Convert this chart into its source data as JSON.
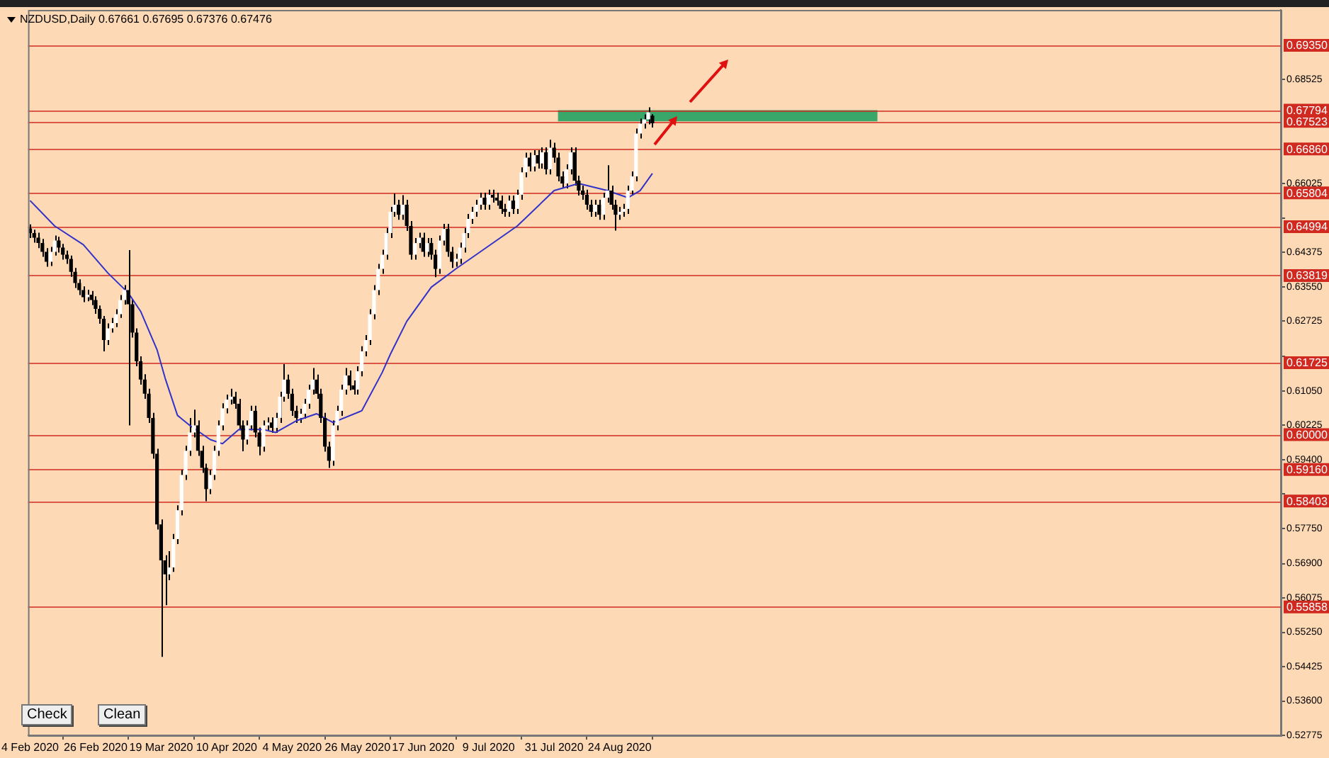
{
  "chart_data": {
    "type": "candlestick",
    "title": "NZDUSD,Daily 0.67661 0.67695 0.67376 0.67476",
    "annotations": [
      "Check",
      "Clean"
    ],
    "categories": [
      "4 Feb 2020",
      null,
      null,
      null,
      null,
      null,
      null,
      null,
      null,
      null,
      null,
      null,
      null,
      null,
      null,
      null,
      "26 Feb 2020",
      null,
      null,
      null,
      null,
      null,
      null,
      null,
      null,
      null,
      null,
      null,
      null,
      null,
      null,
      null,
      "19 Mar 2020",
      null,
      null,
      null,
      null,
      null,
      null,
      null,
      null,
      null,
      null,
      null,
      null,
      null,
      null,
      null,
      "10 Apr 2020",
      null,
      null,
      null,
      null,
      null,
      null,
      null,
      null,
      null,
      null,
      null,
      null,
      null,
      null,
      null,
      "4 May 2020",
      null,
      null,
      null,
      null,
      null,
      null,
      null,
      null,
      null,
      null,
      null,
      null,
      null,
      null,
      null,
      "26 May 2020",
      null,
      null,
      null,
      null,
      null,
      null,
      null,
      null,
      null,
      null,
      null,
      null,
      null,
      null,
      null,
      "17 Jun 2020",
      null,
      null,
      null,
      null,
      null,
      null,
      null,
      null,
      null,
      null,
      null,
      null,
      null,
      null,
      null,
      "9 Jul 2020",
      null,
      null,
      null,
      null,
      null,
      null,
      null,
      null,
      null,
      null,
      null,
      null,
      null,
      null,
      null,
      "31 Jul 2020",
      null,
      null,
      null,
      null,
      null,
      null,
      null,
      null,
      null,
      null,
      null,
      null,
      null,
      null,
      null,
      "24 Aug 2020",
      null,
      null,
      null,
      null,
      null,
      null,
      null,
      null,
      null,
      null,
      null,
      null,
      null,
      null,
      null,
      null,
      null,
      null,
      null,
      null,
      null,
      null,
      null,
      null,
      null,
      null,
      null,
      null,
      null,
      null,
      null,
      null,
      null,
      null,
      null,
      null,
      null,
      null,
      null,
      null,
      null,
      null,
      null,
      null,
      null,
      null,
      null,
      null,
      null,
      null,
      null,
      null,
      null,
      null,
      null,
      null,
      null,
      null,
      null,
      null,
      null,
      null,
      null,
      null,
      null,
      null,
      null,
      null,
      null,
      null,
      null,
      null,
      null,
      null,
      null,
      null,
      null,
      null,
      null,
      null,
      null,
      null,
      null,
      null,
      null,
      null,
      null,
      null,
      null,
      null,
      null,
      null,
      null,
      null,
      null,
      null,
      null,
      null,
      null,
      null,
      null,
      null,
      null,
      null,
      null,
      null,
      null,
      null,
      null,
      null,
      null,
      null,
      null,
      null,
      null,
      null,
      null,
      null,
      null,
      null,
      null,
      null,
      null,
      null,
      null,
      null,
      null,
      null,
      null,
      null,
      null,
      null,
      null,
      null,
      null,
      null,
      null,
      null,
      null,
      null,
      null,
      null,
      null,
      null,
      null,
      null,
      null,
      null,
      null,
      null,
      null,
      null,
      null,
      null,
      null,
      null,
      null,
      null,
      null,
      null,
      null
    ],
    "ylim": [
      0.52775,
      0.702
    ],
    "yticks": [
      {
        "value": 0.52775,
        "label": "0.52775"
      },
      {
        "value": 0.536,
        "label": "0.53600"
      },
      {
        "value": 0.54425,
        "label": "0.54425"
      },
      {
        "value": 0.5525,
        "label": "0.55250"
      },
      {
        "value": 0.56075,
        "label": "0.56075"
      },
      {
        "value": 0.569,
        "label": "0.56900"
      },
      {
        "value": 0.5775,
        "label": "0.57750"
      },
      {
        "value": 0.58575,
        "label": null
      },
      {
        "value": 0.594,
        "label": "0.59400"
      },
      {
        "value": 0.60225,
        "label": "0.60225"
      },
      {
        "value": 0.6105,
        "label": "0.61050"
      },
      {
        "value": 0.61875,
        "label": null
      },
      {
        "value": 0.62725,
        "label": "0.62725"
      },
      {
        "value": 0.6355,
        "label": "0.63550"
      },
      {
        "value": 0.64375,
        "label": "0.64375"
      },
      {
        "value": 0.652,
        "label": null
      },
      {
        "value": 0.66025,
        "label": "0.66025"
      },
      {
        "value": 0.68525,
        "label": "0.68525"
      }
    ],
    "ref_lines": [
      {
        "axis": "y",
        "value": 0.6935,
        "label": "0.69350",
        "color": "#d02a20"
      },
      {
        "axis": "y",
        "value": 0.67794,
        "label": "0.67794",
        "color": "#d02a20"
      },
      {
        "axis": "y",
        "value": 0.67523,
        "label": "0.67523",
        "color": "#d02a20"
      },
      {
        "axis": "y",
        "value": 0.6686,
        "label": "0.66860",
        "color": "#d02a20"
      },
      {
        "axis": "y",
        "value": 0.65804,
        "label": "0.65804",
        "color": "#d02a20"
      },
      {
        "axis": "y",
        "value": 0.64994,
        "label": "0.64994",
        "color": "#d02a20"
      },
      {
        "axis": "y",
        "value": 0.63819,
        "label": "0.63819",
        "color": "#d02a20"
      },
      {
        "axis": "y",
        "value": 0.61725,
        "label": "0.61725",
        "color": "#d02a20"
      },
      {
        "axis": "y",
        "value": 0.6,
        "label": "0.60000",
        "color": "#d02a20"
      },
      {
        "axis": "y",
        "value": 0.5916,
        "label": "0.59160",
        "color": "#d02a20"
      },
      {
        "axis": "y",
        "value": 0.58403,
        "label": "0.58403",
        "color": "#d02a20"
      },
      {
        "axis": "y",
        "value": 0.55858,
        "label": "0.55858",
        "color": "#d02a20"
      }
    ],
    "bands": [
      {
        "axis": "y",
        "from": 0.67523,
        "to": 0.67794,
        "color": "#3aa76a"
      }
    ],
    "color": "#000000",
    "colors": [
      "#000000",
      "#000000",
      "#000000",
      "#000000",
      "#000000",
      "#ffffff",
      "#ffffff",
      "#000000",
      "#000000",
      "#000000",
      "#000000",
      "#000000",
      "#000000",
      "#000000",
      "#ffffff",
      "#000000",
      "#000000",
      "#000000",
      "#000000",
      "#ffffff",
      "#ffffff",
      "#ffffff",
      "#ffffff",
      "#ffffff",
      "#000000",
      "#000000",
      "#000000",
      "#000000",
      "#000000",
      "#000000",
      "#000000",
      "#000000",
      "#000000",
      "#000000",
      "#ffffff",
      "#ffffff",
      "#ffffff",
      "#ffffff",
      "#ffffff",
      "#ffffff",
      "#ffffff",
      "#000000",
      "#000000",
      "#000000",
      "#ffffff",
      "#ffffff",
      "#ffffff",
      "#ffffff",
      "#ffffff",
      "#ffffff",
      "#000000",
      "#000000",
      "#000000",
      "#ffffff",
      "#ffffff",
      "#000000",
      "#000000",
      "#ffffff",
      "#ffffff",
      "#000000",
      "#ffffff",
      "#ffffff",
      "#ffffff",
      "#000000",
      "#000000",
      "#000000",
      "#ffffff",
      "#ffffff",
      "#ffffff",
      "#ffffff",
      "#000000",
      "#000000",
      "#000000",
      "#000000",
      "#ffffff",
      "#ffffff",
      "#ffffff",
      "#ffffff",
      "#000000",
      "#000000",
      "#ffffff",
      "#ffffff",
      "#ffffff",
      "#ffffff",
      "#ffffff",
      "#ffffff",
      "#ffffff",
      "#ffffff",
      "#ffffff",
      "#ffffff",
      "#000000",
      "#ffffff",
      "#000000",
      "#000000",
      "#ffffff",
      "#ffffff",
      "#000000",
      "#ffffff",
      "#000000",
      "#000000",
      "#ffffff",
      "#ffffff",
      "#000000",
      "#000000",
      "#ffffff",
      "#ffffff",
      "#ffffff",
      "#ffffff",
      "#ffffff",
      "#ffffff",
      "#ffffff",
      "#000000",
      "#ffffff",
      "#000000",
      "#000000",
      "#000000",
      "#000000",
      "#ffffff",
      "#000000",
      "#ffffff",
      "#ffffff",
      "#ffffff",
      "#000000",
      "#ffffff",
      "#000000",
      "#ffffff",
      "#000000",
      "#ffffff",
      "#000000",
      "#000000",
      "#000000",
      "#ffffff",
      "#ffffff",
      "#000000",
      "#000000",
      "#000000",
      "#000000",
      "#000000",
      "#ffffff",
      "#000000",
      "#ffffff",
      "#ffffff",
      "#000000",
      "#000000",
      "#ffffff",
      "#ffffff",
      "#ffffff",
      "#ffffff",
      "#ffffff",
      "#ffffff",
      "#ffffff",
      "#ffffff",
      "#000000",
      null,
      null,
      null,
      null,
      null,
      null,
      null,
      null,
      null,
      null,
      null,
      null,
      null,
      null,
      null,
      null,
      null,
      null,
      null,
      null,
      null,
      null,
      null,
      null,
      null,
      null,
      null,
      null,
      null,
      null,
      null,
      null,
      null,
      null,
      null,
      null,
      null,
      null,
      null,
      null,
      null,
      null,
      null,
      null,
      null,
      null,
      null,
      null,
      null,
      null,
      null,
      null,
      null,
      null,
      null,
      null,
      null,
      null,
      null,
      null,
      null,
      null,
      null,
      null,
      null,
      null,
      null,
      null,
      null,
      null,
      null,
      null,
      null,
      null,
      null,
      null,
      null,
      null,
      null,
      null,
      null,
      null,
      null,
      null,
      null,
      null,
      null,
      null,
      null,
      null,
      null,
      null,
      null,
      null,
      null,
      null,
      null,
      null,
      null,
      null,
      null,
      null,
      null,
      null,
      null,
      null,
      null,
      null,
      null,
      null,
      null,
      null,
      null,
      null,
      null,
      null,
      null,
      null,
      null,
      null,
      null,
      null,
      null,
      null,
      null,
      null,
      null,
      null,
      null,
      null,
      null,
      null,
      null,
      null,
      null,
      null,
      null,
      null,
      null,
      null,
      null,
      null,
      null,
      null,
      null,
      null,
      null,
      null,
      null,
      null,
      null,
      null,
      null
    ],
    "ohlc": [
      [
        0.6495,
        0.6505,
        0.6472,
        0.6484
      ],
      [
        0.6484,
        0.6492,
        0.6461,
        0.6473
      ],
      [
        0.6473,
        0.6485,
        0.6448,
        0.646
      ],
      [
        0.646,
        0.647,
        0.6427,
        0.6439
      ],
      [
        0.6439,
        0.6448,
        0.6403,
        0.6415
      ],
      [
        0.6415,
        0.6451,
        0.6405,
        0.6439
      ],
      [
        0.6439,
        0.6478,
        0.643,
        0.6466
      ],
      [
        0.6466,
        0.6475,
        0.6437,
        0.6449
      ],
      [
        0.6449,
        0.6458,
        0.642,
        0.6432
      ],
      [
        0.6432,
        0.6442,
        0.641,
        0.6422
      ],
      [
        0.6422,
        0.643,
        0.6379,
        0.6391
      ],
      [
        0.6391,
        0.64,
        0.6352,
        0.6364
      ],
      [
        0.6364,
        0.6373,
        0.6335,
        0.6347
      ],
      [
        0.6347,
        0.6356,
        0.6318,
        0.633
      ],
      [
        0.633,
        0.6348,
        0.632,
        0.6336
      ],
      [
        0.6336,
        0.6345,
        0.6311,
        0.6323
      ],
      [
        0.6323,
        0.6332,
        0.629,
        0.6302
      ],
      [
        0.6302,
        0.631,
        0.6266,
        0.6278
      ],
      [
        0.6278,
        0.6285,
        0.62,
        0.6227
      ],
      [
        0.6227,
        0.6267,
        0.6215,
        0.6255
      ],
      [
        0.6255,
        0.628,
        0.6245,
        0.6268
      ],
      [
        0.6268,
        0.6301,
        0.6258,
        0.6289
      ],
      [
        0.6289,
        0.6335,
        0.628,
        0.6323
      ],
      [
        0.6323,
        0.6359,
        0.6312,
        0.6347
      ],
      [
        0.6347,
        0.6443,
        0.6022,
        0.6313
      ],
      [
        0.6313,
        0.6325,
        0.6233,
        0.6245
      ],
      [
        0.6245,
        0.6255,
        0.6164,
        0.6176
      ],
      [
        0.6176,
        0.6188,
        0.612,
        0.6132
      ],
      [
        0.6132,
        0.6145,
        0.6086,
        0.6098
      ],
      [
        0.6098,
        0.611,
        0.6028,
        0.604
      ],
      [
        0.604,
        0.6052,
        0.5942,
        0.5954
      ],
      [
        0.5954,
        0.5966,
        0.5772,
        0.5784
      ],
      [
        0.5784,
        0.5796,
        0.5466,
        0.5698
      ],
      [
        0.5698,
        0.571,
        0.559,
        0.5664
      ],
      [
        0.5664,
        0.572,
        0.565,
        0.5681
      ],
      [
        0.5681,
        0.5761,
        0.567,
        0.5749
      ],
      [
        0.5749,
        0.583,
        0.5737,
        0.5818
      ],
      [
        0.5818,
        0.5915,
        0.5806,
        0.5903
      ],
      [
        0.5903,
        0.5973,
        0.5891,
        0.5961
      ],
      [
        0.5961,
        0.604,
        0.5949,
        0.6005
      ],
      [
        0.6005,
        0.606,
        0.5993,
        0.6022
      ],
      [
        0.6022,
        0.6034,
        0.5949,
        0.5961
      ],
      [
        0.5961,
        0.5973,
        0.5908,
        0.592
      ],
      [
        0.592,
        0.593,
        0.584,
        0.5869
      ],
      [
        0.5869,
        0.5915,
        0.5857,
        0.5903
      ],
      [
        0.5903,
        0.5973,
        0.5891,
        0.5961
      ],
      [
        0.5961,
        0.6034,
        0.5949,
        0.6022
      ],
      [
        0.6022,
        0.6075,
        0.601,
        0.6063
      ],
      [
        0.6063,
        0.6096,
        0.6051,
        0.6084
      ],
      [
        0.6084,
        0.611,
        0.6072,
        0.6091
      ],
      [
        0.6091,
        0.6103,
        0.6062,
        0.6074
      ],
      [
        0.6074,
        0.6086,
        0.601,
        0.6022
      ],
      [
        0.6022,
        0.6034,
        0.596,
        0.5988
      ],
      [
        0.5988,
        0.6034,
        0.5976,
        0.6022
      ],
      [
        0.6022,
        0.6069,
        0.601,
        0.6057
      ],
      [
        0.6057,
        0.6069,
        0.5993,
        0.6005
      ],
      [
        0.6005,
        0.6017,
        0.595,
        0.5971
      ],
      [
        0.5971,
        0.6034,
        0.5959,
        0.6022
      ],
      [
        0.6022,
        0.6041,
        0.601,
        0.6029
      ],
      [
        0.6029,
        0.6041,
        0.6004,
        0.6016
      ],
      [
        0.6016,
        0.6052,
        0.6004,
        0.604
      ],
      [
        0.604,
        0.6103,
        0.6028,
        0.6091
      ],
      [
        0.6091,
        0.6169,
        0.6079,
        0.6132
      ],
      [
        0.6132,
        0.6144,
        0.6086,
        0.6098
      ],
      [
        0.6098,
        0.611,
        0.6045,
        0.6057
      ],
      [
        0.6057,
        0.6069,
        0.6028,
        0.604
      ],
      [
        0.604,
        0.6062,
        0.6028,
        0.605
      ],
      [
        0.605,
        0.6086,
        0.6038,
        0.6074
      ],
      [
        0.6074,
        0.612,
        0.6062,
        0.6108
      ],
      [
        0.6108,
        0.616,
        0.6096,
        0.6132
      ],
      [
        0.6132,
        0.6144,
        0.6086,
        0.6098
      ],
      [
        0.6098,
        0.611,
        0.6028,
        0.604
      ],
      [
        0.604,
        0.6052,
        0.5959,
        0.5971
      ],
      [
        0.5971,
        0.5983,
        0.592,
        0.5937
      ],
      [
        0.5937,
        0.6034,
        0.5925,
        0.6022
      ],
      [
        0.6022,
        0.6069,
        0.601,
        0.6057
      ],
      [
        0.6057,
        0.612,
        0.6045,
        0.6108
      ],
      [
        0.6108,
        0.616,
        0.6096,
        0.6142
      ],
      [
        0.6142,
        0.6154,
        0.6106,
        0.6118
      ],
      [
        0.6118,
        0.613,
        0.6096,
        0.6108
      ],
      [
        0.6108,
        0.6164,
        0.6096,
        0.6152
      ],
      [
        0.6152,
        0.6212,
        0.614,
        0.62
      ],
      [
        0.62,
        0.6239,
        0.6188,
        0.6227
      ],
      [
        0.6227,
        0.6301,
        0.6215,
        0.6289
      ],
      [
        0.6289,
        0.6359,
        0.6277,
        0.6347
      ],
      [
        0.6347,
        0.641,
        0.6335,
        0.6398
      ],
      [
        0.6398,
        0.6444,
        0.6386,
        0.6432
      ],
      [
        0.6432,
        0.6496,
        0.642,
        0.6484
      ],
      [
        0.6484,
        0.6547,
        0.6472,
        0.6535
      ],
      [
        0.6535,
        0.6579,
        0.6523,
        0.6552
      ],
      [
        0.6552,
        0.6564,
        0.6516,
        0.6528
      ],
      [
        0.6528,
        0.6575,
        0.6516,
        0.6552
      ],
      [
        0.6552,
        0.6564,
        0.6489,
        0.6501
      ],
      [
        0.6501,
        0.6513,
        0.642,
        0.6432
      ],
      [
        0.6432,
        0.6472,
        0.642,
        0.646
      ],
      [
        0.646,
        0.6485,
        0.6448,
        0.6473
      ],
      [
        0.6473,
        0.6485,
        0.6427,
        0.6439
      ],
      [
        0.6439,
        0.6472,
        0.6427,
        0.646
      ],
      [
        0.646,
        0.6472,
        0.642,
        0.6432
      ],
      [
        0.6432,
        0.6444,
        0.6378,
        0.6398
      ],
      [
        0.6398,
        0.6478,
        0.6386,
        0.6466
      ],
      [
        0.6466,
        0.6506,
        0.6454,
        0.6494
      ],
      [
        0.6494,
        0.6506,
        0.6427,
        0.6439
      ],
      [
        0.6439,
        0.6451,
        0.64,
        0.6415
      ],
      [
        0.6415,
        0.6434,
        0.6403,
        0.6422
      ],
      [
        0.6422,
        0.6461,
        0.641,
        0.6449
      ],
      [
        0.6449,
        0.6496,
        0.6437,
        0.6484
      ],
      [
        0.6484,
        0.653,
        0.6472,
        0.6518
      ],
      [
        0.6518,
        0.6547,
        0.6506,
        0.6535
      ],
      [
        0.6535,
        0.6564,
        0.6523,
        0.6552
      ],
      [
        0.6552,
        0.6581,
        0.654,
        0.6569
      ],
      [
        0.6569,
        0.6581,
        0.654,
        0.6552
      ],
      [
        0.6552,
        0.6588,
        0.654,
        0.6576
      ],
      [
        0.6576,
        0.6588,
        0.6557,
        0.6569
      ],
      [
        0.6569,
        0.6581,
        0.655,
        0.6562
      ],
      [
        0.6562,
        0.6574,
        0.653,
        0.6542
      ],
      [
        0.6542,
        0.6554,
        0.6523,
        0.6535
      ],
      [
        0.6535,
        0.6574,
        0.6523,
        0.6562
      ],
      [
        0.6562,
        0.6574,
        0.653,
        0.6542
      ],
      [
        0.6542,
        0.6588,
        0.653,
        0.6576
      ],
      [
        0.6576,
        0.6642,
        0.6564,
        0.663
      ],
      [
        0.663,
        0.6677,
        0.6618,
        0.6665
      ],
      [
        0.6665,
        0.6677,
        0.6632,
        0.6644
      ],
      [
        0.6644,
        0.6683,
        0.6632,
        0.6671
      ],
      [
        0.6671,
        0.6683,
        0.6639,
        0.6651
      ],
      [
        0.6651,
        0.669,
        0.6639,
        0.6678
      ],
      [
        0.6678,
        0.669,
        0.6625,
        0.6637
      ],
      [
        0.6637,
        0.6708,
        0.6625,
        0.6689
      ],
      [
        0.6689,
        0.6701,
        0.6653,
        0.6665
      ],
      [
        0.6665,
        0.6677,
        0.6608,
        0.662
      ],
      [
        0.662,
        0.6632,
        0.6591,
        0.6603
      ],
      [
        0.6603,
        0.6649,
        0.6591,
        0.6637
      ],
      [
        0.6637,
        0.669,
        0.6625,
        0.6678
      ],
      [
        0.6678,
        0.669,
        0.6598,
        0.661
      ],
      [
        0.661,
        0.6622,
        0.6574,
        0.6586
      ],
      [
        0.6586,
        0.6598,
        0.6564,
        0.6576
      ],
      [
        0.6576,
        0.6588,
        0.654,
        0.6552
      ],
      [
        0.6552,
        0.6564,
        0.6523,
        0.6535
      ],
      [
        0.6535,
        0.6564,
        0.6523,
        0.6552
      ],
      [
        0.6552,
        0.6564,
        0.6516,
        0.6528
      ],
      [
        0.6528,
        0.6581,
        0.6516,
        0.6569
      ],
      [
        0.6569,
        0.6647,
        0.6557,
        0.6586
      ],
      [
        0.6586,
        0.6598,
        0.654,
        0.6552
      ],
      [
        0.6552,
        0.6564,
        0.649,
        0.6528
      ],
      [
        0.6528,
        0.6547,
        0.6516,
        0.6535
      ],
      [
        0.6535,
        0.6554,
        0.6523,
        0.6542
      ],
      [
        0.6542,
        0.6598,
        0.653,
        0.6586
      ],
      [
        0.6586,
        0.6632,
        0.6574,
        0.662
      ],
      [
        0.662,
        0.6735,
        0.6608,
        0.6723
      ],
      [
        0.6723,
        0.6759,
        0.6711,
        0.6747
      ],
      [
        0.6747,
        0.6769,
        0.6735,
        0.6757
      ],
      [
        0.6757,
        0.6786,
        0.6745,
        0.6774
      ],
      [
        0.67661,
        0.67695,
        0.67376,
        0.67476
      ],
      null,
      null,
      null,
      null,
      null,
      null,
      null,
      null,
      null,
      null,
      null,
      null,
      null,
      null,
      null,
      null,
      null,
      null,
      null,
      null,
      null,
      null,
      null,
      null,
      null,
      null,
      null,
      null,
      null,
      null,
      null,
      null,
      null,
      null,
      null,
      null,
      null,
      null,
      null,
      null,
      null,
      null,
      null,
      null,
      null,
      null,
      null,
      null,
      null,
      null,
      null,
      null,
      null,
      null,
      null,
      null,
      null,
      null,
      null,
      null,
      null,
      null,
      null,
      null,
      null,
      null,
      null,
      null,
      null,
      null,
      null,
      null,
      null,
      null,
      null,
      null,
      null,
      null,
      null,
      null,
      null,
      null,
      null,
      null,
      null,
      null,
      null,
      null,
      null,
      null,
      null,
      null,
      null,
      null,
      null,
      null,
      null,
      null,
      null,
      null,
      null,
      null,
      null,
      null,
      null,
      null,
      null,
      null,
      null,
      null,
      null,
      null,
      null,
      null,
      null,
      null,
      null,
      null,
      null,
      null,
      null,
      null,
      null,
      null,
      null,
      null,
      null,
      null,
      null,
      null,
      null,
      null,
      null,
      null,
      null,
      null,
      null,
      null,
      null,
      null,
      null,
      null,
      null,
      null,
      null,
      null,
      null,
      null,
      null,
      null,
      null,
      null,
      null
    ],
    "series": [
      {
        "type": "line",
        "color": "#3232c8",
        "values": [
          0.6562,
          null,
          null,
          null,
          null,
          null,
          0.6501,
          null,
          null,
          null,
          null,
          null,
          null,
          0.6456,
          null,
          null,
          null,
          null,
          null,
          0.6388,
          null,
          null,
          null,
          null,
          0.634,
          null,
          null,
          0.6296,
          null,
          null,
          null,
          0.6204,
          null,
          0.6135,
          null,
          null,
          0.6046,
          null,
          null,
          0.6022,
          null,
          null,
          null,
          null,
          0.5988,
          null,
          null,
          0.5978,
          null,
          null,
          null,
          0.6012,
          null,
          null,
          null,
          null,
          null,
          0.6012,
          null,
          null,
          0.6005,
          null,
          null,
          null,
          null,
          0.6033,
          null,
          null,
          null,
          null,
          0.605,
          null,
          null,
          null,
          0.6029,
          null,
          null,
          null,
          null,
          null,
          null,
          0.6057,
          null,
          null,
          null,
          null,
          0.6149,
          null,
          0.6193,
          null,
          null,
          null,
          0.6272,
          null,
          null,
          null,
          null,
          null,
          0.6354,
          null,
          null,
          null,
          null,
          null,
          0.6398,
          null,
          null,
          null,
          null,
          null,
          null,
          null,
          null,
          null,
          null,
          null,
          null,
          null,
          null,
          0.6501,
          null,
          null,
          null,
          null,
          null,
          null,
          null,
          null,
          0.6586,
          null,
          null,
          null,
          null,
          null,
          0.6603,
          null,
          null,
          null,
          null,
          null,
          null,
          0.6586,
          null,
          null,
          null,
          null,
          0.6569,
          null,
          null,
          0.6586,
          null,
          null,
          0.6627,
          null,
          null,
          null,
          null,
          null,
          null,
          null,
          null,
          null,
          null,
          null,
          null,
          null,
          null,
          null,
          null,
          null,
          null,
          null,
          null,
          null,
          null,
          null,
          null,
          null,
          null,
          null,
          null,
          null,
          null,
          null,
          null,
          null,
          null,
          null,
          null,
          null,
          null,
          null,
          null,
          null,
          null,
          null,
          null,
          null,
          null,
          null,
          null,
          null,
          null,
          null,
          null,
          null,
          null,
          null,
          null,
          null,
          null,
          null,
          null,
          null,
          null,
          null,
          null,
          null,
          null,
          null,
          null,
          null,
          null,
          null,
          null,
          null,
          null,
          null,
          null,
          null,
          null,
          null,
          null,
          null,
          null,
          null,
          null,
          null,
          null,
          null,
          null,
          null,
          null,
          null,
          null,
          null,
          null,
          null,
          null,
          null,
          null,
          null,
          null,
          null,
          null,
          null,
          null,
          null,
          null,
          null,
          null,
          null,
          null,
          null,
          null,
          null,
          null,
          null,
          null,
          null,
          null,
          null,
          null,
          null,
          null,
          null,
          null,
          null,
          null,
          null,
          null,
          null,
          null,
          null,
          null,
          null,
          null,
          null,
          null,
          null,
          null,
          null,
          null,
          null,
          null,
          null,
          null,
          null,
          null,
          null,
          null,
          null,
          null,
          null,
          null,
          null
        ]
      }
    ]
  }
}
